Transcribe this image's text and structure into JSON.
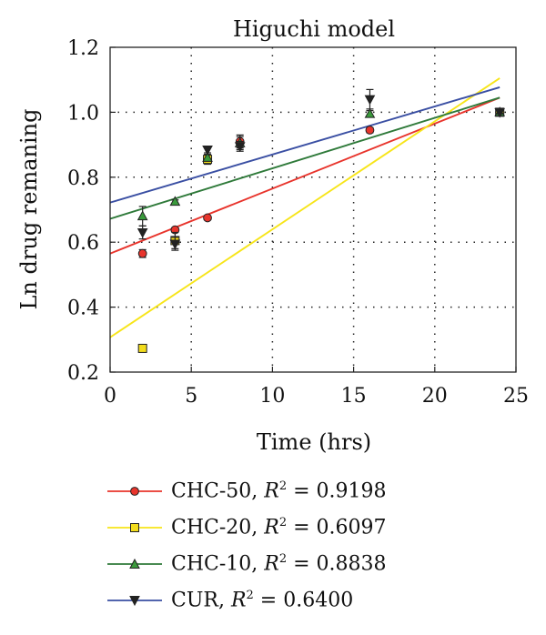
{
  "chart_data": {
    "type": "scatter",
    "title": "Higuchi model",
    "xlabel": "Time (hrs)",
    "ylabel": "Ln drug remaning",
    "xlim": [
      0,
      25
    ],
    "ylim": [
      0.2,
      1.2
    ],
    "xticks": [
      0,
      5,
      10,
      15,
      20,
      25
    ],
    "yticks": [
      0.2,
      0.4,
      0.6,
      0.8,
      1.0,
      1.2
    ],
    "xtick_labels": [
      "0",
      "5",
      "10",
      "15",
      "20",
      "25"
    ],
    "ytick_labels": [
      "0.2",
      "0.4",
      "0.6",
      "0.8",
      "1.0",
      "1.2"
    ],
    "grid": "dotted",
    "legend_position": "bottom",
    "series": [
      {
        "name": "CHC-50",
        "r2_label": "R",
        "r2_value": " = 0.9198",
        "color": "#e8342c",
        "marker": "circle",
        "marker_fill": "#e8342c",
        "x": [
          2,
          4,
          6,
          8,
          16,
          24
        ],
        "y": [
          0.565,
          0.638,
          0.675,
          0.91,
          0.945,
          1.0
        ],
        "yerr": [
          0.012,
          0.005,
          0.005,
          0.02,
          0.008,
          0.005
        ],
        "fit": {
          "x": [
            0,
            24
          ],
          "y": [
            0.565,
            1.045
          ]
        }
      },
      {
        "name": "CHC-20",
        "r2_label": "R",
        "r2_value": " = 0.6097",
        "color": "#f7e51a",
        "marker": "square",
        "marker_fill": "#f2dc1c",
        "x": [
          2,
          4,
          6,
          24
        ],
        "y": [
          0.273,
          0.605,
          0.855,
          1.0
        ],
        "yerr": [
          0.005,
          0.025,
          0.015,
          0.005
        ],
        "fit": {
          "x": [
            0,
            24
          ],
          "y": [
            0.307,
            1.105
          ]
        }
      },
      {
        "name": "CHC-10",
        "r2_label": "R",
        "r2_value": " = 0.8838",
        "color": "#2f7a3a",
        "marker": "triangle-up",
        "marker_fill": "#3a9a3c",
        "x": [
          2,
          4,
          6,
          8,
          16,
          24
        ],
        "y": [
          0.68,
          0.725,
          0.86,
          0.905,
          0.995,
          1.0
        ],
        "yerr": [
          0.03,
          0.005,
          0.01,
          0.02,
          0.01,
          0.005
        ],
        "fit": {
          "x": [
            0,
            24
          ],
          "y": [
            0.672,
            1.045
          ]
        }
      },
      {
        "name": "CUR",
        "r2_label": "R",
        "r2_value": " = 0.6400",
        "color": "#3a4fa3",
        "marker": "triangle-down",
        "marker_fill": "#222222",
        "x": [
          2,
          4,
          6,
          8,
          16,
          24
        ],
        "y": [
          0.63,
          0.595,
          0.885,
          0.895,
          1.04,
          1.0
        ],
        "yerr": [
          0.02,
          0.02,
          0.01,
          0.015,
          0.03,
          0.005
        ],
        "fit": {
          "x": [
            0,
            24
          ],
          "y": [
            0.722,
            1.077
          ]
        }
      }
    ]
  }
}
